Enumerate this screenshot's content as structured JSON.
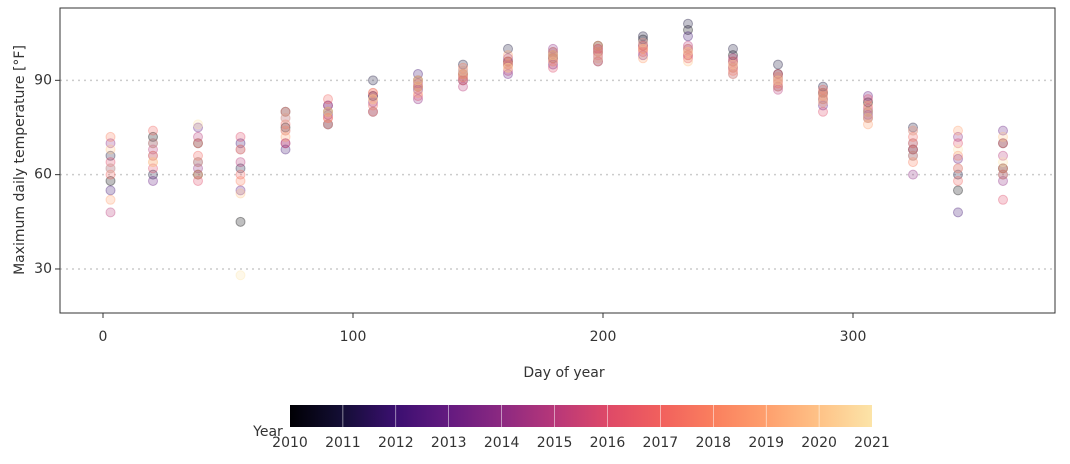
{
  "chart_data": {
    "type": "scatter",
    "x_label": "Day of year",
    "y_label": "Maximum daily temperature [°F]",
    "legend_title": "Year",
    "xlim": [
      -17.2,
      380.8
    ],
    "xticks": [
      0,
      100,
      200,
      300
    ],
    "ylim": [
      16,
      113
    ],
    "yticks": [
      30,
      60,
      90
    ],
    "grid": true,
    "x": [
      3,
      20,
      38,
      55,
      73,
      90,
      108,
      126,
      144,
      162,
      180,
      198,
      216,
      234,
      252,
      270,
      288,
      306,
      324,
      342,
      360
    ],
    "series": [
      {
        "name": "2010",
        "color": "#000004",
        "values": [
          58,
          72,
          60,
          45,
          75,
          80,
          85,
          90,
          92,
          96,
          98,
          101,
          103,
          106,
          98,
          92,
          86,
          83,
          68,
          55,
          62
        ]
      },
      {
        "name": "2011",
        "color": "#140e36",
        "values": [
          66,
          60,
          70,
          62,
          80,
          76,
          90,
          88,
          95,
          100,
          97,
          99,
          104,
          108,
          100,
          95,
          88,
          80,
          75,
          60,
          70
        ]
      },
      {
        "name": "2012",
        "color": "#3b0f70",
        "values": [
          55,
          70,
          64,
          70,
          68,
          82,
          80,
          92,
          90,
          95,
          99,
          96,
          101,
          104,
          96,
          88,
          84,
          78,
          66,
          48,
          60
        ]
      },
      {
        "name": "2013",
        "color": "#641a80",
        "values": [
          62,
          58,
          75,
          55,
          70,
          79,
          85,
          87,
          93,
          92,
          95,
          100,
          98,
          100,
          94,
          90,
          82,
          85,
          70,
          65,
          74
        ]
      },
      {
        "name": "2014",
        "color": "#8c2981",
        "values": [
          70,
          66,
          62,
          68,
          78,
          76,
          83,
          84,
          91,
          97,
          100,
          97,
          102,
          98,
          92,
          91,
          86,
          79,
          60,
          72,
          58
        ]
      },
      {
        "name": "2015",
        "color": "#b73779",
        "values": [
          48,
          68,
          72,
          64,
          74,
          82,
          80,
          89,
          88,
          93,
          96,
          99,
          100,
          101,
          97,
          87,
          83,
          81,
          74,
          62,
          66
        ]
      },
      {
        "name": "2016",
        "color": "#de4968",
        "values": [
          64,
          62,
          58,
          72,
          70,
          78,
          86,
          85,
          92,
          95,
          94,
          98,
          99,
          97,
          95,
          92,
          80,
          84,
          68,
          70,
          52
        ]
      },
      {
        "name": "2017",
        "color": "#f1605d",
        "values": [
          60,
          74,
          66,
          60,
          76,
          84,
          82,
          88,
          90,
          96,
          98,
          100,
          101,
          99,
          93,
          89,
          87,
          78,
          72,
          58,
          70
        ]
      },
      {
        "name": "2018",
        "color": "#fa7f5e",
        "values": [
          72,
          64,
          70,
          58,
          80,
          78,
          84,
          90,
          94,
          94,
          97,
          96,
          100,
          98,
          96,
          90,
          85,
          82,
          64,
          66,
          62
        ]
      },
      {
        "name": "2019",
        "color": "#fe9f6d",
        "values": [
          52,
          66,
          60,
          68,
          72,
          80,
          86,
          86,
          91,
          98,
          99,
          101,
          97,
          100,
          94,
          88,
          84,
          76,
          70,
          74,
          60
        ]
      },
      {
        "name": "2020",
        "color": "#fec287",
        "values": [
          68,
          70,
          64,
          54,
          74,
          76,
          80,
          88,
          92,
          95,
          96,
          99,
          100,
          96,
          92,
          91,
          86,
          80,
          66,
          62,
          72
        ]
      },
      {
        "name": "2021",
        "color": "#fce4a8",
        "values": [
          62,
          64,
          76,
          28,
          78,
          80,
          84,
          90,
          93,
          94,
          98,
          97,
          102,
          99,
          95,
          90,
          83,
          78,
          74,
          68,
          64
        ]
      }
    ]
  }
}
